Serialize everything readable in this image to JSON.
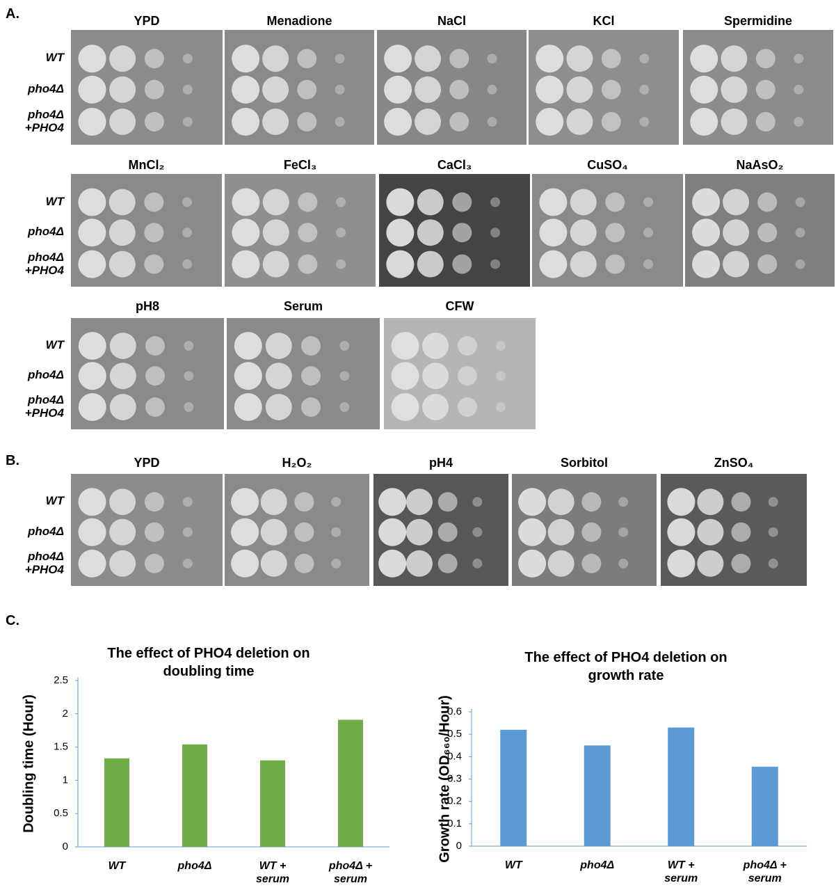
{
  "panels": [
    {
      "label": "A.",
      "rows": [
        {
          "conditions": [
            "YPD",
            "Menadione",
            "NaCl",
            "KCl",
            "Spermidine"
          ]
        },
        {
          "conditions": [
            "MnCl₂",
            "FeCl₃",
            "CaCl₃",
            "CuSO₄",
            "NaAsO₂"
          ]
        },
        {
          "conditions": [
            "pH8",
            "Serum",
            "CFW"
          ]
        }
      ]
    },
    {
      "label": "B.",
      "rows": [
        {
          "conditions": [
            "YPD",
            "H₂O₂",
            "pH4",
            "Sorbitol",
            "ZnSO₄"
          ]
        }
      ]
    }
  ],
  "strains": [
    "WT",
    "pho4Δ",
    "pho4Δ +PHO4"
  ],
  "panel_c_label": "C.",
  "chart_data": [
    {
      "type": "bar",
      "title": "The effect of PHO4 deletion on doubling time",
      "ylabel": "Doubling time (Hour)",
      "categories": [
        "WT",
        "pho4Δ",
        "WT + serum",
        "pho4Δ + serum"
      ],
      "values": [
        1.33,
        1.54,
        1.3,
        1.91
      ],
      "color": "#70ad47",
      "ylim": [
        0,
        2.5
      ],
      "yticks": [
        0,
        0.5,
        1,
        1.5,
        2,
        2.5
      ]
    },
    {
      "type": "bar",
      "title": "The effect of PHO4 deletion on growth rate",
      "ylabel": "Growth rate (OD₆₆₀/Hour)",
      "categories": [
        "WT",
        "pho4Δ",
        "WT + serum",
        "pho4Δ + serum"
      ],
      "values": [
        0.52,
        0.45,
        0.53,
        0.355
      ],
      "color": "#5b9bd5",
      "ylim": [
        0,
        0.6
      ],
      "yticks": [
        0,
        0.1,
        0.2,
        0.3,
        0.4,
        0.5,
        0.6
      ]
    }
  ]
}
